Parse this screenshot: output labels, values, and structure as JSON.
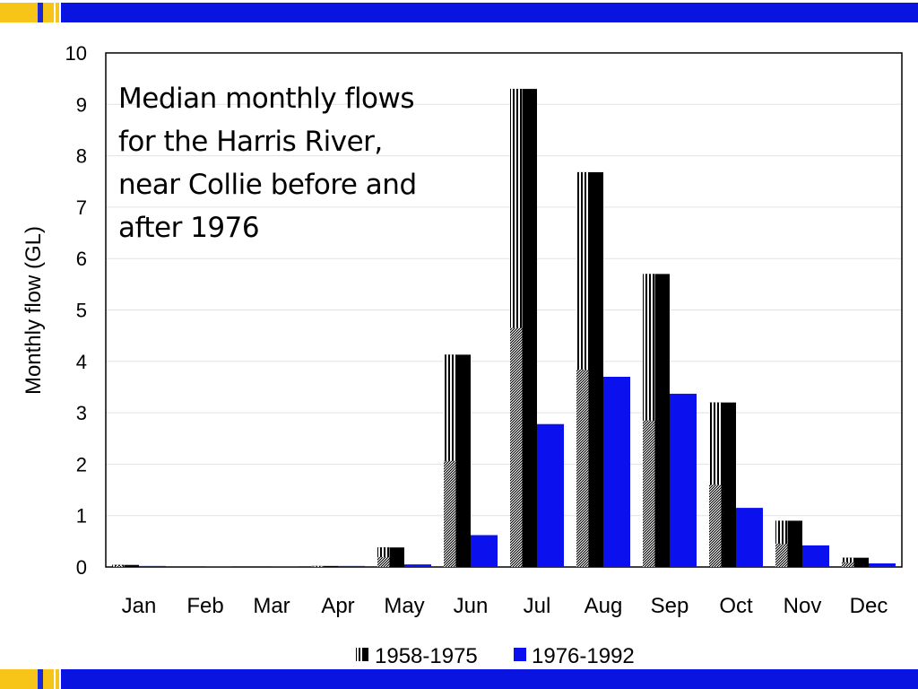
{
  "chart_data": {
    "type": "bar",
    "title_lines": [
      "Median monthly flows",
      "for the Harris River,",
      "near Collie before and",
      "after 1976"
    ],
    "ylabel": "Monthly flow (GL)",
    "xlabel": "",
    "ylim": [
      0,
      10
    ],
    "yticks": [
      0,
      1,
      2,
      3,
      4,
      5,
      6,
      7,
      8,
      9,
      10
    ],
    "categories": [
      "Jan",
      "Feb",
      "Mar",
      "Apr",
      "May",
      "Jun",
      "Jul",
      "Aug",
      "Sep",
      "Oct",
      "Nov",
      "Dec"
    ],
    "series": [
      {
        "name": "1958-1975",
        "color": "#000000",
        "pattern": "hatched-black",
        "values": [
          0.04,
          0.0,
          0.0,
          0.02,
          0.38,
          4.13,
          9.3,
          7.68,
          5.7,
          3.2,
          0.9,
          0.18
        ]
      },
      {
        "name": "1976-1992",
        "color": "#0a10ee",
        "values": [
          0.02,
          0.01,
          0.01,
          0.02,
          0.05,
          0.62,
          2.78,
          3.7,
          3.37,
          1.15,
          0.42,
          0.07
        ]
      }
    ],
    "grid": true,
    "legend_position": "bottom-center"
  }
}
